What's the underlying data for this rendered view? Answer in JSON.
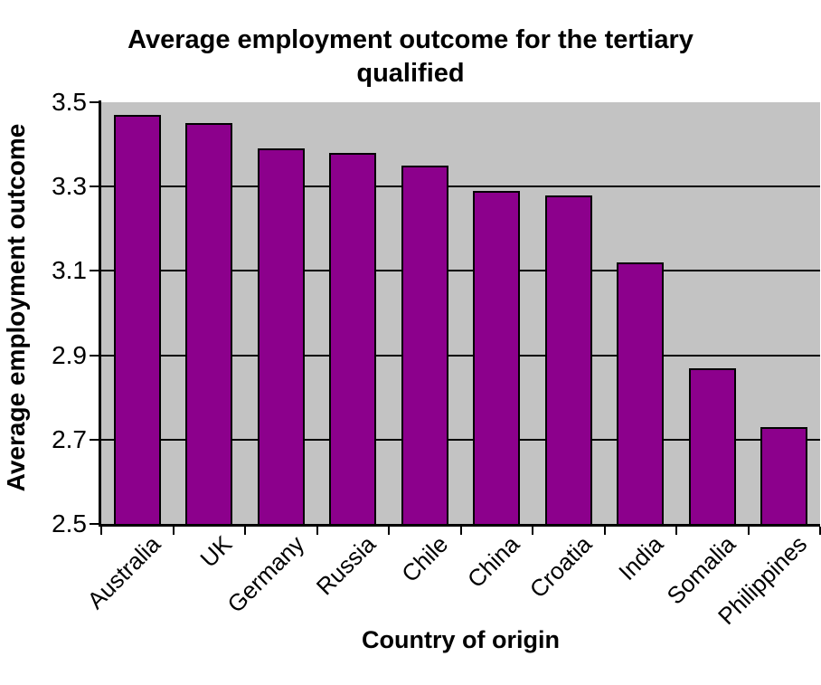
{
  "chart_data": {
    "type": "bar",
    "title": "Average employment outcome for the tertiary qualified",
    "title_lines": [
      "Average employment outcome for the tertiary",
      "qualified"
    ],
    "xlabel": "Country of origin",
    "ylabel": "Average employment outcome",
    "categories": [
      "Australia",
      "UK",
      "Germany",
      "Russia",
      "Chile",
      "China",
      "Croatia",
      "India",
      "Somalia",
      "Philippines"
    ],
    "values": [
      3.47,
      3.45,
      3.39,
      3.38,
      3.35,
      3.29,
      3.28,
      3.12,
      2.87,
      2.73
    ],
    "ylim": [
      2.5,
      3.5
    ],
    "yticks": [
      3.5,
      3.3,
      3.1,
      2.9,
      2.7,
      2.5
    ],
    "gridlines_at": [
      3.3,
      3.1,
      2.9,
      2.7
    ],
    "grid": true,
    "legend": "none",
    "colors": {
      "bar_fill": "#8C008C",
      "bar_border": "#000000",
      "plot_background": "#C3C3C3",
      "grid_color": "#000000",
      "axis_color": "#000000",
      "text_color": "#000000",
      "page_background": "#FFFFFF"
    }
  }
}
